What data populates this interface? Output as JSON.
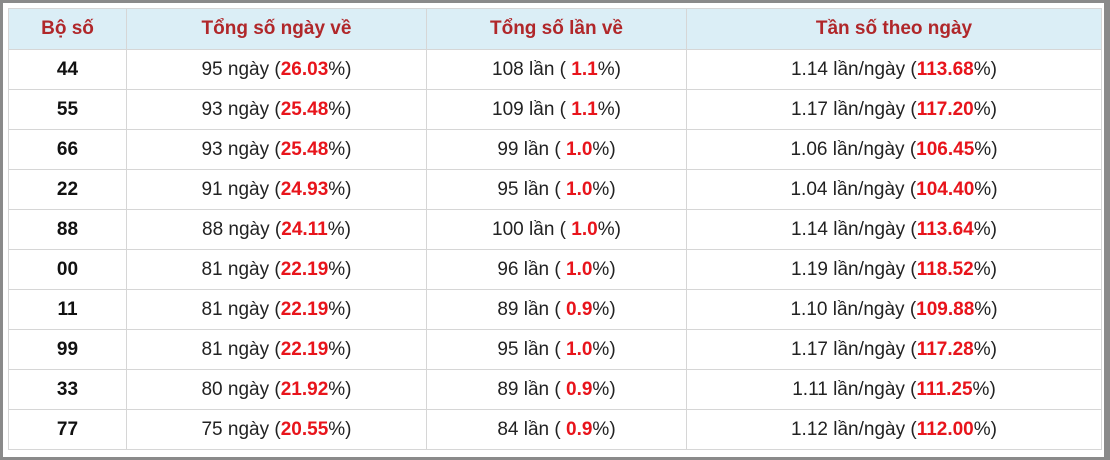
{
  "table": {
    "header": [
      "Bộ số",
      "Tổng số ngày về",
      "Tổng số lần về",
      "Tần số theo ngày"
    ],
    "rows": [
      [
        "44",
        [
          "95 ngày (",
          "26.03",
          "%)"
        ],
        [
          "108 lần ( ",
          "1.1",
          "%)"
        ],
        [
          "1.14 lần/ngày (",
          "113.68",
          "%)"
        ]
      ],
      [
        "55",
        [
          "93 ngày (",
          "25.48",
          "%)"
        ],
        [
          "109 lần ( ",
          "1.1",
          "%)"
        ],
        [
          "1.17 lần/ngày (",
          "117.20",
          "%)"
        ]
      ],
      [
        "66",
        [
          "93 ngày (",
          "25.48",
          "%)"
        ],
        [
          "99 lần ( ",
          "1.0",
          "%)"
        ],
        [
          "1.06 lần/ngày (",
          "106.45",
          "%)"
        ]
      ],
      [
        "22",
        [
          "91 ngày (",
          "24.93",
          "%)"
        ],
        [
          "95 lần ( ",
          "1.0",
          "%)"
        ],
        [
          "1.04 lần/ngày (",
          "104.40",
          "%)"
        ]
      ],
      [
        "88",
        [
          "88 ngày (",
          "24.11",
          "%)"
        ],
        [
          "100 lần ( ",
          "1.0",
          "%)"
        ],
        [
          "1.14 lần/ngày (",
          "113.64",
          "%)"
        ]
      ],
      [
        "00",
        [
          "81 ngày (",
          "22.19",
          "%)"
        ],
        [
          "96 lần ( ",
          "1.0",
          "%)"
        ],
        [
          "1.19 lần/ngày (",
          "118.52",
          "%)"
        ]
      ],
      [
        "11",
        [
          "81 ngày (",
          "22.19",
          "%)"
        ],
        [
          "89 lần ( ",
          "0.9",
          "%)"
        ],
        [
          "1.10 lần/ngày (",
          "109.88",
          "%)"
        ]
      ],
      [
        "99",
        [
          "81 ngày (",
          "22.19",
          "%)"
        ],
        [
          "95 lần ( ",
          "1.0",
          "%)"
        ],
        [
          "1.17 lần/ngày (",
          "117.28",
          "%)"
        ]
      ],
      [
        "33",
        [
          "80 ngày (",
          "21.92",
          "%)"
        ],
        [
          "89 lần ( ",
          "0.9",
          "%)"
        ],
        [
          "1.11 lần/ngày (",
          "111.25",
          "%)"
        ]
      ],
      [
        "77",
        [
          "75 ngày (",
          "20.55",
          "%)"
        ],
        [
          "84 lần ( ",
          "0.9",
          "%)"
        ],
        [
          "1.12 lần/ngày (",
          "112.00",
          "%)"
        ]
      ]
    ]
  }
}
